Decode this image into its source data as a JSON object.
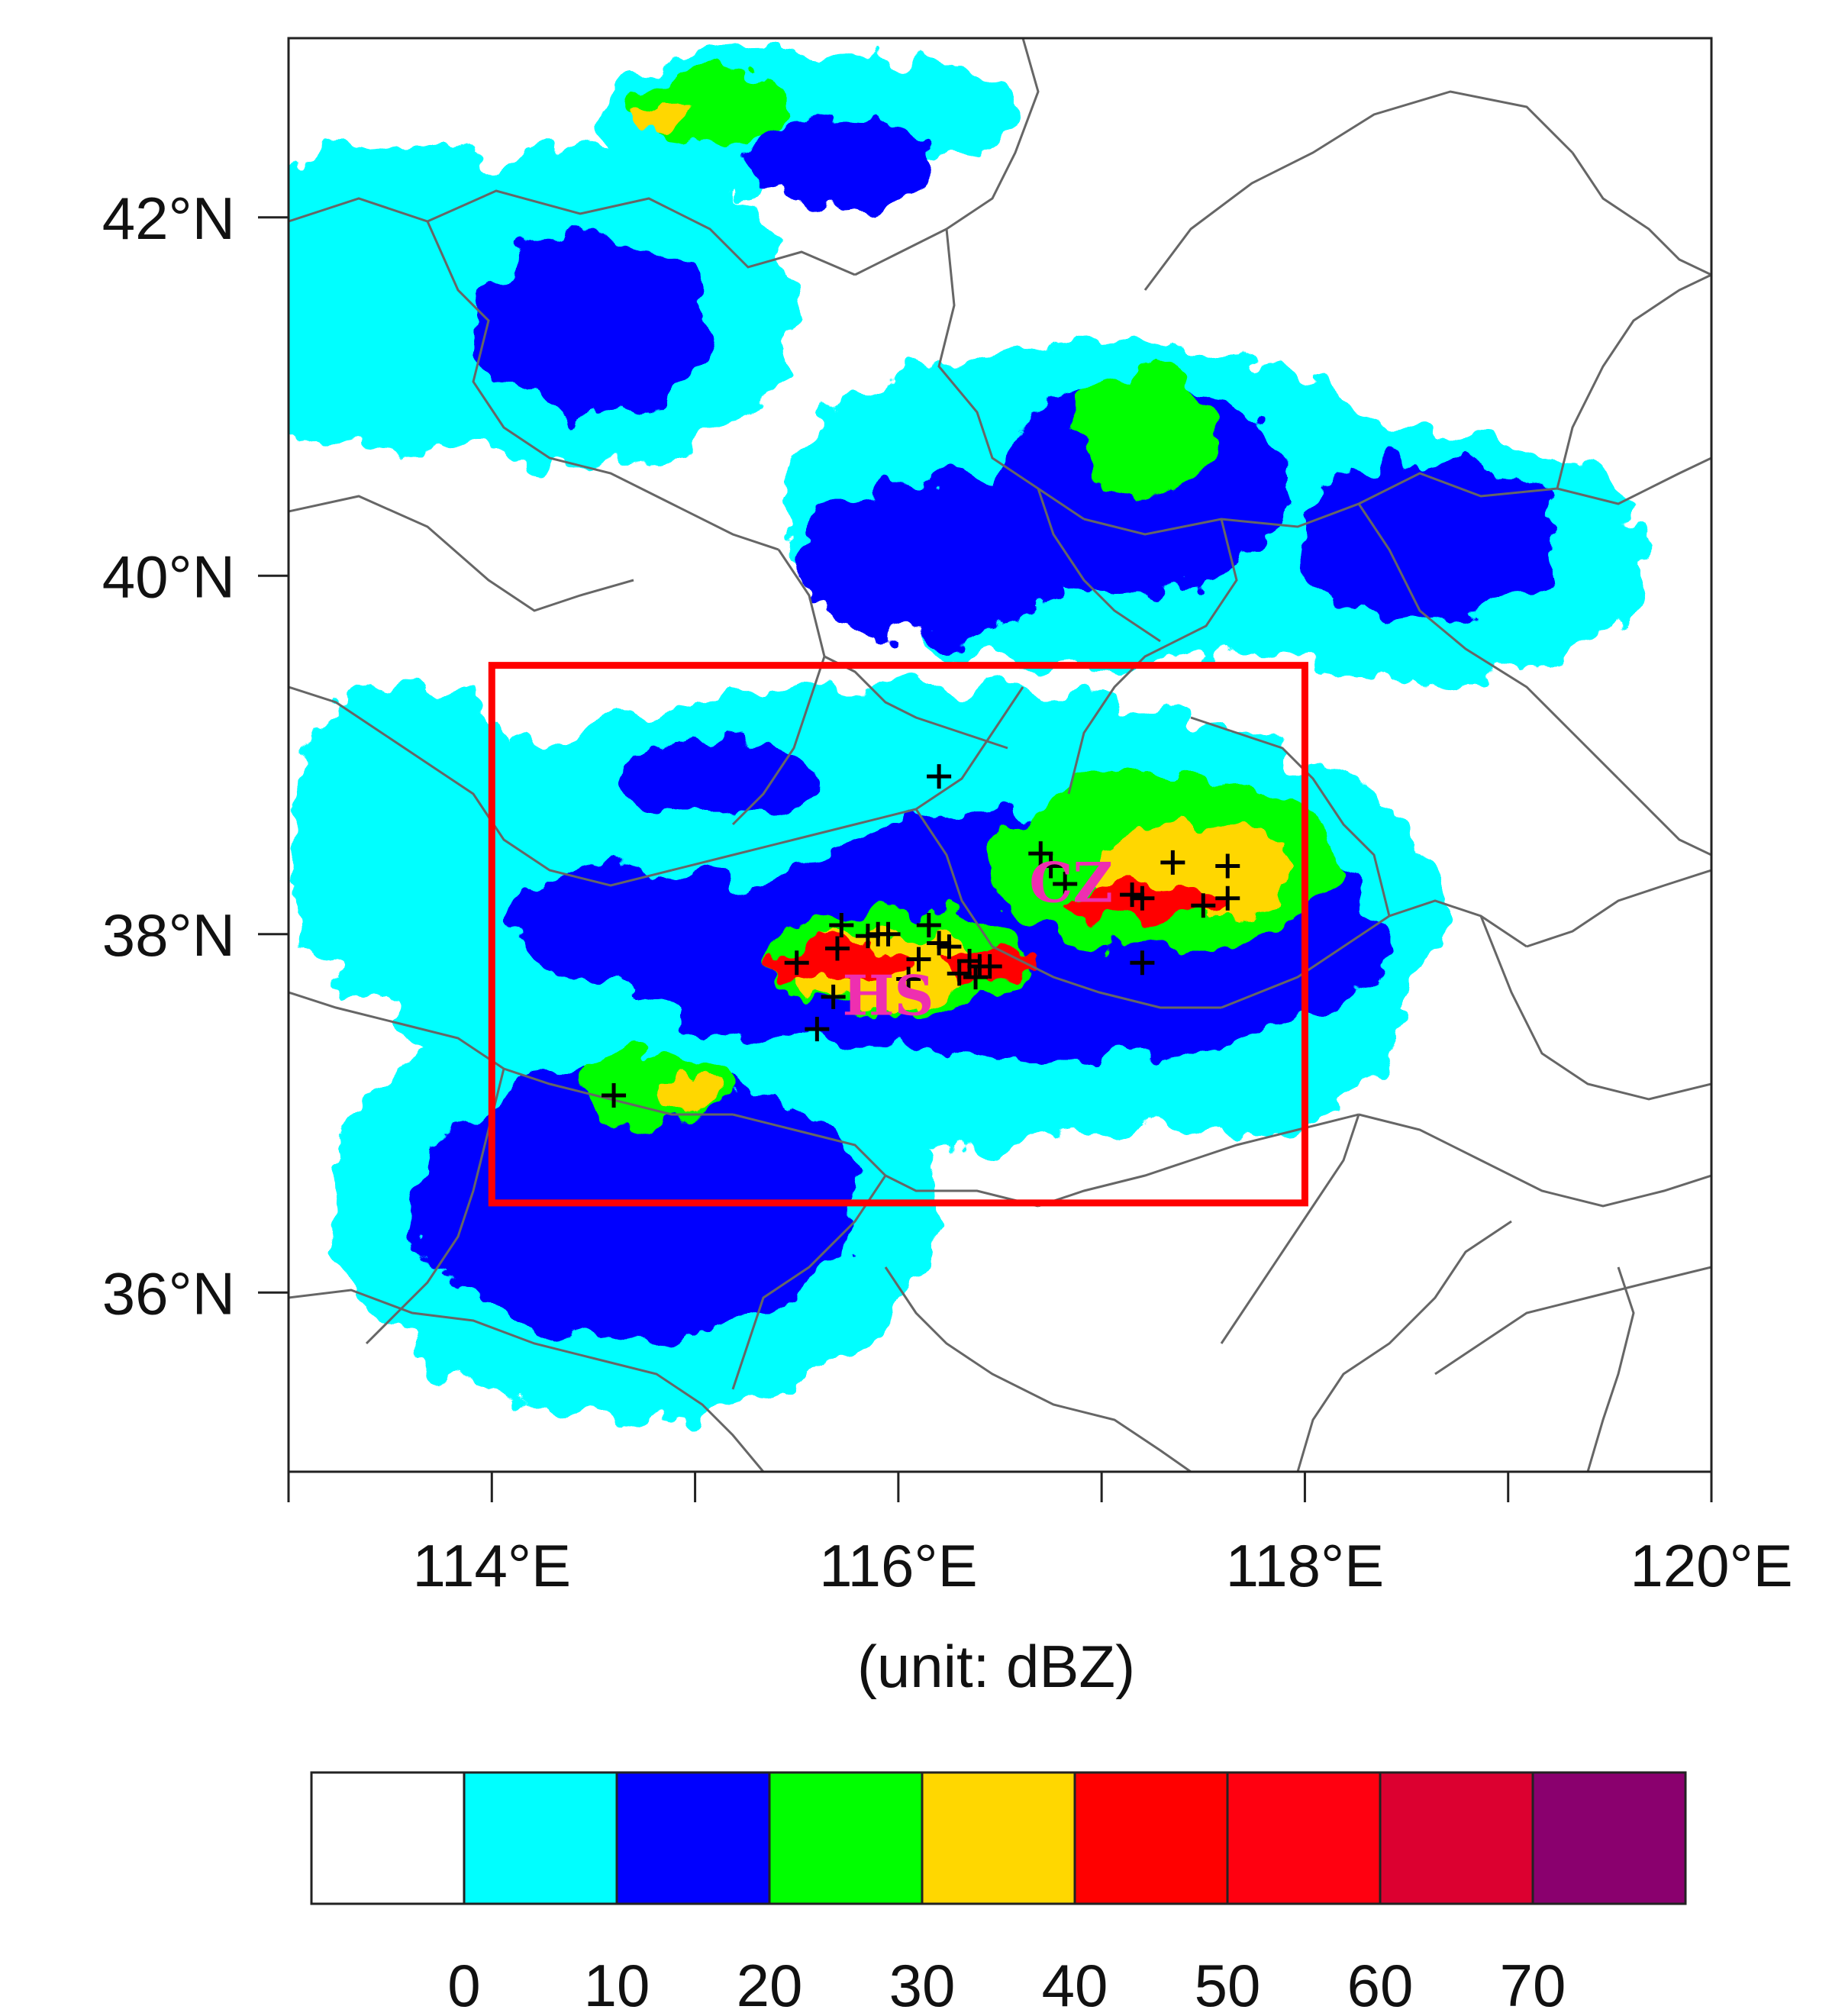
{
  "chart_data": {
    "type": "heatmap",
    "title": "",
    "xlabel": "(unit: dBZ)",
    "ylabel": "",
    "xlim": [
      113.0,
      120.0
    ],
    "ylim": [
      35.0,
      43.0
    ],
    "x_ticks": [
      {
        "value": 114,
        "label": "114°E"
      },
      {
        "value": 116,
        "label": "116°E"
      },
      {
        "value": 118,
        "label": "118°E"
      },
      {
        "value": 120,
        "label": "120°E"
      }
    ],
    "x_minor_ticks": [
      113,
      115,
      117,
      119
    ],
    "y_ticks": [
      {
        "value": 36,
        "label": "36°N"
      },
      {
        "value": 38,
        "label": "38°N"
      },
      {
        "value": 40,
        "label": "40°N"
      },
      {
        "value": 42,
        "label": "42°N"
      }
    ],
    "study_box": {
      "lon_min": 114.0,
      "lon_max": 118.0,
      "lat_min": 36.5,
      "lat_max": 39.5,
      "color": "#ff0000"
    },
    "city_labels": [
      {
        "text": "CZ",
        "lon": 116.85,
        "lat": 38.18
      },
      {
        "text": "HS",
        "lon": 115.95,
        "lat": 37.55
      }
    ],
    "markers": [
      {
        "lon": 116.2,
        "lat": 38.88
      },
      {
        "lon": 116.7,
        "lat": 38.45
      },
      {
        "lon": 116.75,
        "lat": 38.38
      },
      {
        "lon": 116.82,
        "lat": 38.28
      },
      {
        "lon": 117.15,
        "lat": 38.22
      },
      {
        "lon": 117.2,
        "lat": 38.2
      },
      {
        "lon": 117.35,
        "lat": 38.4
      },
      {
        "lon": 117.62,
        "lat": 38.38
      },
      {
        "lon": 117.5,
        "lat": 38.16
      },
      {
        "lon": 117.62,
        "lat": 38.2
      },
      {
        "lon": 117.2,
        "lat": 37.84
      },
      {
        "lon": 115.5,
        "lat": 37.84
      },
      {
        "lon": 115.72,
        "lat": 38.05
      },
      {
        "lon": 115.7,
        "lat": 37.92
      },
      {
        "lon": 115.85,
        "lat": 37.99
      },
      {
        "lon": 115.9,
        "lat": 38.0
      },
      {
        "lon": 115.95,
        "lat": 38.0
      },
      {
        "lon": 116.15,
        "lat": 38.05
      },
      {
        "lon": 116.2,
        "lat": 37.95
      },
      {
        "lon": 116.25,
        "lat": 37.93
      },
      {
        "lon": 116.1,
        "lat": 37.86
      },
      {
        "lon": 116.05,
        "lat": 37.75
      },
      {
        "lon": 116.3,
        "lat": 37.78
      },
      {
        "lon": 116.35,
        "lat": 37.85
      },
      {
        "lon": 116.4,
        "lat": 37.82
      },
      {
        "lon": 116.45,
        "lat": 37.82
      },
      {
        "lon": 116.38,
        "lat": 37.76
      },
      {
        "lon": 115.68,
        "lat": 37.65
      },
      {
        "lon": 115.6,
        "lat": 37.47
      },
      {
        "lon": 114.6,
        "lat": 37.1
      }
    ],
    "reflectivity_regions": [
      {
        "level": 10,
        "color": "#00ffff",
        "lon": 113.55,
        "lat": 41.55,
        "rx": 1.0,
        "ry": 0.85
      },
      {
        "level": 10,
        "color": "#00ffff",
        "lon": 114.5,
        "lat": 41.5,
        "rx": 1.0,
        "ry": 0.9
      },
      {
        "level": 10,
        "color": "#00ffff",
        "lon": 115.3,
        "lat": 42.55,
        "rx": 0.8,
        "ry": 0.4
      },
      {
        "level": 10,
        "color": "#00ffff",
        "lon": 116.0,
        "lat": 42.6,
        "rx": 0.6,
        "ry": 0.3
      },
      {
        "level": 10,
        "color": "#00ffff",
        "lon": 117.0,
        "lat": 40.4,
        "rx": 1.6,
        "ry": 0.9
      },
      {
        "level": 10,
        "color": "#00ffff",
        "lon": 118.6,
        "lat": 40.1,
        "rx": 1.1,
        "ry": 0.7
      },
      {
        "level": 10,
        "color": "#00ffff",
        "lon": 116.0,
        "lat": 38.1,
        "rx": 2.7,
        "ry": 1.3
      },
      {
        "level": 10,
        "color": "#00ffff",
        "lon": 114.7,
        "lat": 36.5,
        "rx": 1.5,
        "ry": 1.2
      },
      {
        "level": 10,
        "color": "#00ffff",
        "lon": 113.6,
        "lat": 38.5,
        "rx": 0.6,
        "ry": 0.9
      },
      {
        "level": 10,
        "color": "#00ffff",
        "lon": 117.6,
        "lat": 37.6,
        "rx": 0.9,
        "ry": 0.7
      },
      {
        "level": 20,
        "color": "#0000ff",
        "lon": 114.5,
        "lat": 41.4,
        "rx": 0.55,
        "ry": 0.5
      },
      {
        "level": 20,
        "color": "#0000ff",
        "lon": 115.7,
        "lat": 42.3,
        "rx": 0.45,
        "ry": 0.25
      },
      {
        "level": 20,
        "color": "#0000ff",
        "lon": 116.2,
        "lat": 40.1,
        "rx": 0.7,
        "ry": 0.45
      },
      {
        "level": 20,
        "color": "#0000ff",
        "lon": 117.2,
        "lat": 40.5,
        "rx": 0.7,
        "ry": 0.6
      },
      {
        "level": 20,
        "color": "#0000ff",
        "lon": 118.6,
        "lat": 40.2,
        "rx": 0.65,
        "ry": 0.45
      },
      {
        "level": 20,
        "color": "#0000ff",
        "lon": 116.8,
        "lat": 38.0,
        "rx": 1.6,
        "ry": 0.7
      },
      {
        "level": 20,
        "color": "#0000ff",
        "lon": 115.6,
        "lat": 37.85,
        "rx": 0.9,
        "ry": 0.45
      },
      {
        "level": 20,
        "color": "#0000ff",
        "lon": 114.7,
        "lat": 38.05,
        "rx": 0.6,
        "ry": 0.35
      },
      {
        "level": 20,
        "color": "#0000ff",
        "lon": 115.1,
        "lat": 38.85,
        "rx": 0.5,
        "ry": 0.2
      },
      {
        "level": 20,
        "color": "#0000ff",
        "lon": 114.7,
        "lat": 36.5,
        "rx": 1.1,
        "ry": 0.75
      },
      {
        "level": 30,
        "color": "#00ff00",
        "lon": 115.1,
        "lat": 42.6,
        "rx": 0.4,
        "ry": 0.2
      },
      {
        "level": 30,
        "color": "#00ff00",
        "lon": 117.2,
        "lat": 40.8,
        "rx": 0.35,
        "ry": 0.35
      },
      {
        "level": 30,
        "color": "#00ff00",
        "lon": 117.3,
        "lat": 38.4,
        "rx": 0.85,
        "ry": 0.5
      },
      {
        "level": 30,
        "color": "#00ff00",
        "lon": 116.0,
        "lat": 37.85,
        "rx": 0.65,
        "ry": 0.3
      },
      {
        "level": 30,
        "color": "#00ff00",
        "lon": 114.8,
        "lat": 37.15,
        "rx": 0.35,
        "ry": 0.2
      },
      {
        "level": 40,
        "color": "#ffd700",
        "lon": 117.45,
        "lat": 38.35,
        "rx": 0.5,
        "ry": 0.25
      },
      {
        "level": 40,
        "color": "#ffd700",
        "lon": 115.9,
        "lat": 37.8,
        "rx": 0.45,
        "ry": 0.22
      },
      {
        "level": 40,
        "color": "#ffd700",
        "lon": 114.95,
        "lat": 37.1,
        "rx": 0.15,
        "ry": 0.1
      },
      {
        "level": 40,
        "color": "#ffd700",
        "lon": 114.8,
        "lat": 42.55,
        "rx": 0.1,
        "ry": 0.07
      },
      {
        "level": 50,
        "color": "#ff0000",
        "lon": 117.2,
        "lat": 38.18,
        "rx": 0.35,
        "ry": 0.12
      },
      {
        "level": 50,
        "color": "#ff0000",
        "lon": 115.7,
        "lat": 37.85,
        "rx": 0.35,
        "ry": 0.12
      },
      {
        "level": 50,
        "color": "#ff0000",
        "lon": 116.45,
        "lat": 37.82,
        "rx": 0.25,
        "ry": 0.08
      }
    ],
    "colorbar": {
      "levels": [
        "0",
        "10",
        "20",
        "30",
        "40",
        "50",
        "60",
        "70"
      ],
      "colors": [
        "#ffffff",
        "#00ffff",
        "#0000ff",
        "#00ff00",
        "#ffd700",
        "#ff0000",
        "#ff0010",
        "#dc0030",
        "#8a006e"
      ]
    },
    "boundary_color": "#666666",
    "legend_position": "bottom",
    "grid": false
  }
}
